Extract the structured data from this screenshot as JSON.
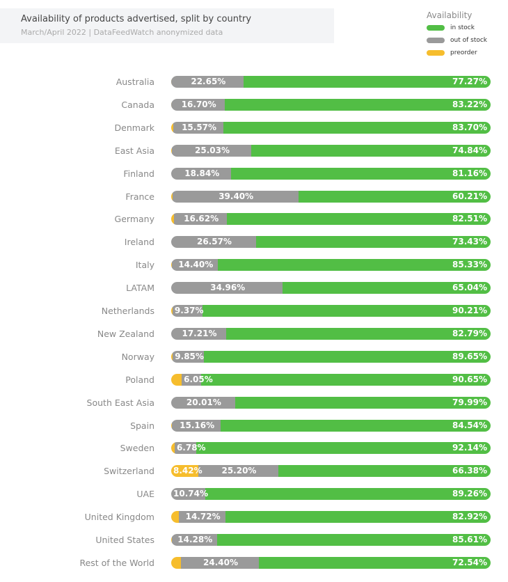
{
  "header": {
    "title": "Availability of products advertised, split by country",
    "subtitle": "March/April 2022 | DataFeedWatch anonymized data"
  },
  "chart_data": {
    "type": "bar",
    "orientation": "horizontal",
    "stacked": true,
    "title": "Availability of products advertised, split by country",
    "subtitle": "March/April 2022 | DataFeedWatch anonymized data",
    "legend": {
      "title": "Availability",
      "placement": "top-right",
      "entries": [
        "in stock",
        "out of stock",
        "preorder"
      ]
    },
    "colors": {
      "in stock": "#52be45",
      "out of stock": "#9a9a9a",
      "preorder": "#f6bd2d"
    },
    "unit": "%",
    "categories": [
      "Australia",
      "Canada",
      "Denmark",
      "East Asia",
      "Finland",
      "France",
      "Germany",
      "Ireland",
      "Italy",
      "LATAM",
      "Netherlands",
      "New Zealand",
      "Norway",
      "Poland",
      "South East Asia",
      "Spain",
      "Sweden",
      "Switzerland",
      "UAE",
      "United Kingdom",
      "United States",
      "Rest of the World"
    ],
    "series": [
      {
        "name": "preorder",
        "values": [
          0.08,
          0.08,
          0.73,
          0.13,
          0,
          0.39,
          0.87,
          0,
          0.27,
          0,
          0.42,
          0,
          0.5,
          3.3,
          0,
          0.3,
          1.08,
          8.42,
          0,
          2.36,
          0.11,
          3.06
        ],
        "labels": [
          null,
          null,
          null,
          null,
          null,
          null,
          null,
          null,
          null,
          null,
          null,
          null,
          null,
          null,
          null,
          null,
          null,
          "8.42%",
          null,
          null,
          null,
          null
        ]
      },
      {
        "name": "out of stock",
        "values": [
          22.65,
          16.7,
          15.57,
          25.03,
          18.84,
          39.4,
          16.62,
          26.57,
          14.4,
          34.96,
          9.37,
          17.21,
          9.85,
          6.05,
          20.01,
          15.16,
          6.78,
          25.2,
          10.74,
          14.72,
          14.28,
          24.4
        ],
        "labels": [
          "22.65%",
          "16.70%",
          "15.57%",
          "25.03%",
          "18.84%",
          "39.40%",
          "16.62%",
          "26.57%",
          "14.40%",
          "34.96%",
          "9.37%",
          "17.21%",
          "9.85%",
          "6.05%",
          "20.01%",
          "15.16%",
          "6.78%",
          "25.20%",
          "10.74%",
          "14.72%",
          "14.28%",
          "24.40%"
        ]
      },
      {
        "name": "in stock",
        "values": [
          77.27,
          83.22,
          83.7,
          74.84,
          81.16,
          60.21,
          82.51,
          73.43,
          85.33,
          65.04,
          90.21,
          82.79,
          89.65,
          90.65,
          79.99,
          84.54,
          92.14,
          66.38,
          89.26,
          82.92,
          85.61,
          72.54
        ],
        "labels": [
          "77.27%",
          "83.22%",
          "83.70%",
          "74.84%",
          "81.16%",
          "60.21%",
          "82.51%",
          "73.43%",
          "85.33%",
          "65.04%",
          "90.21%",
          "82.79%",
          "89.65%",
          "90.65%",
          "79.99%",
          "84.54%",
          "92.14%",
          "66.38%",
          "89.26%",
          "82.92%",
          "85.61%",
          "72.54%"
        ]
      }
    ],
    "xlim": [
      0,
      100
    ]
  }
}
